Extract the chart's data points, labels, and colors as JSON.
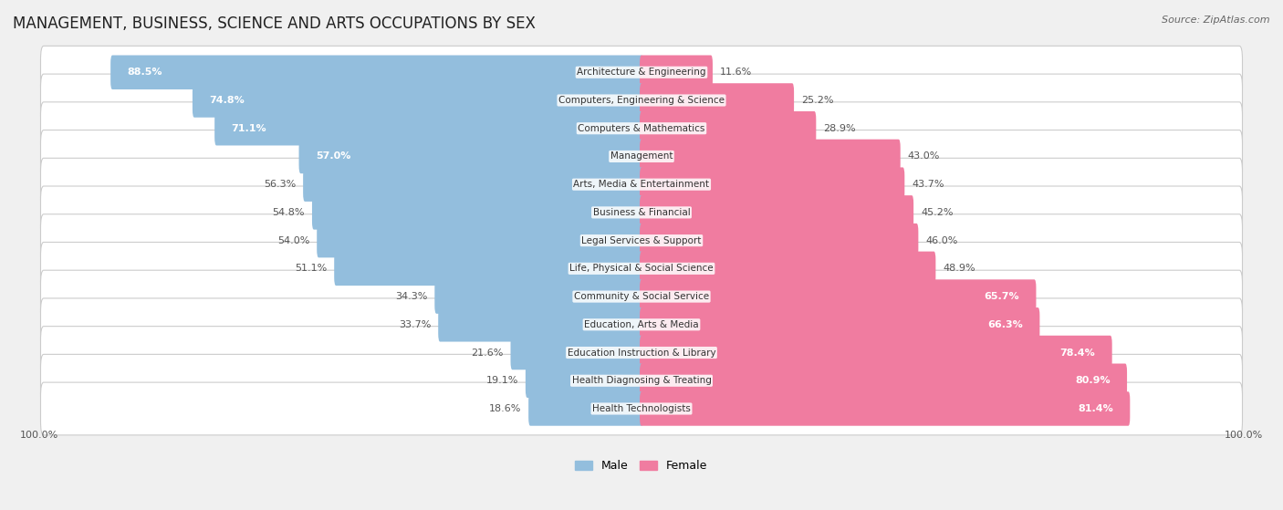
{
  "title": "MANAGEMENT, BUSINESS, SCIENCE AND ARTS OCCUPATIONS BY SEX",
  "source": "Source: ZipAtlas.com",
  "categories": [
    "Architecture & Engineering",
    "Computers, Engineering & Science",
    "Computers & Mathematics",
    "Management",
    "Arts, Media & Entertainment",
    "Business & Financial",
    "Legal Services & Support",
    "Life, Physical & Social Science",
    "Community & Social Service",
    "Education, Arts & Media",
    "Education Instruction & Library",
    "Health Diagnosing & Treating",
    "Health Technologists"
  ],
  "male_pct": [
    88.5,
    74.8,
    71.1,
    57.0,
    56.3,
    54.8,
    54.0,
    51.1,
    34.3,
    33.7,
    21.6,
    19.1,
    18.6
  ],
  "female_pct": [
    11.6,
    25.2,
    28.9,
    43.0,
    43.7,
    45.2,
    46.0,
    48.9,
    65.7,
    66.3,
    78.4,
    80.9,
    81.4
  ],
  "male_color": "#93bedd",
  "female_color": "#f07ca0",
  "bg_color": "#f0f0f0",
  "row_bg_color": "#ffffff",
  "title_fontsize": 12,
  "label_fontsize": 8,
  "cat_fontsize": 7.5,
  "legend_fontsize": 9,
  "source_fontsize": 8
}
